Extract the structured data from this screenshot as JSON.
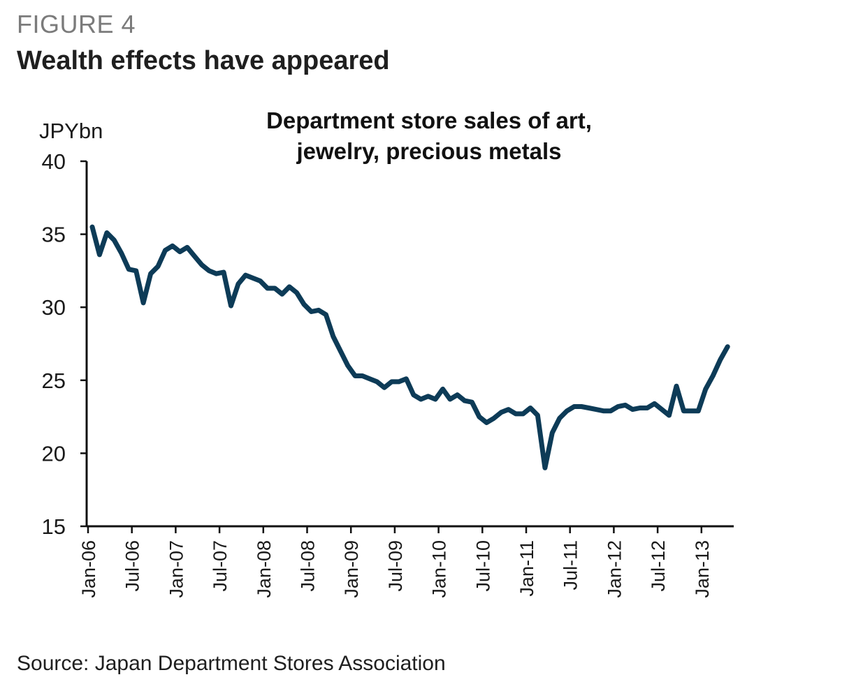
{
  "figure": {
    "label": "FIGURE 4",
    "title": "Wealth effects have appeared",
    "source": "Source: Japan Department Stores Association"
  },
  "colors": {
    "line": "#0d3b57",
    "axis": "#111111"
  },
  "chart_data": {
    "type": "line",
    "title_lines": [
      "Department store sales of art,",
      "jewelry, precious metals"
    ],
    "ylabel": "JPYbn",
    "xlabel": "",
    "ylim": [
      15,
      40
    ],
    "yticks": [
      15,
      20,
      25,
      30,
      35,
      40
    ],
    "xticks": [
      "Jan-06",
      "Jul-06",
      "Jan-07",
      "Jul-07",
      "Jan-08",
      "Jul-08",
      "Jan-09",
      "Jul-09",
      "Jan-10",
      "Jul-10",
      "Jan-11",
      "Jul-11",
      "Jan-12",
      "Jul-12",
      "Jan-13"
    ],
    "x_start": "Jan-06",
    "x_end": "Aug-13",
    "grid": false,
    "legend": "none",
    "series": [
      {
        "values": [
          35.5,
          33.6,
          35.1,
          34.6,
          33.7,
          32.6,
          32.5,
          30.3,
          32.3,
          32.8,
          33.9,
          34.2,
          33.8,
          34.1,
          33.5,
          32.9,
          32.5,
          32.3,
          32.4,
          30.1,
          31.6,
          32.2,
          32.0,
          31.8,
          31.3,
          31.3,
          30.9,
          31.4,
          31.0,
          30.2,
          29.7,
          29.8,
          29.5,
          28.0,
          27.0,
          26.0,
          25.3,
          25.3,
          25.1,
          24.9,
          24.5,
          24.9,
          24.9,
          25.1,
          24.0,
          23.7,
          23.9,
          23.7,
          24.4,
          23.7,
          24.0,
          23.6,
          23.5,
          22.5,
          22.1,
          22.4,
          22.8,
          23.0,
          22.7,
          22.7,
          23.1,
          22.6,
          19.0,
          21.4,
          22.4,
          22.9,
          23.2,
          23.2,
          23.1,
          23.0,
          22.9,
          22.9,
          23.2,
          23.3,
          23.0,
          23.1,
          23.1,
          23.4,
          23.0,
          22.6,
          24.6,
          22.9,
          22.9,
          22.9,
          24.4,
          25.3,
          26.4,
          27.3
        ]
      }
    ]
  }
}
